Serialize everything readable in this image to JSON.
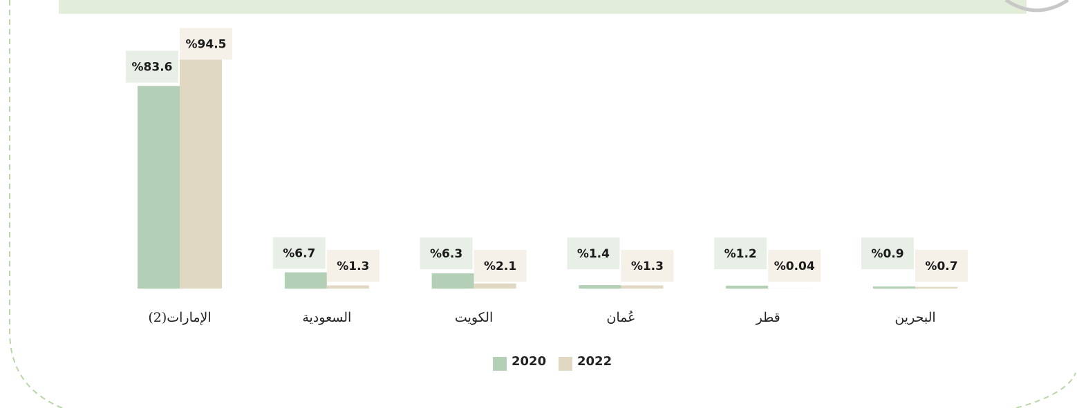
{
  "chart_data": {
    "type": "bar",
    "categories": [
      "الإمارات(2)",
      "السعودية",
      "الكويت",
      "عُمان",
      "قطر",
      "البحرين"
    ],
    "series": [
      {
        "name": "2020",
        "color": "#b3cfb5",
        "values": [
          83.6,
          6.7,
          6.3,
          1.4,
          1.2,
          0.9
        ],
        "value_labels": [
          "%83.6",
          "%6.7",
          "%6.3",
          "%1.4",
          "%1.2",
          "%0.9"
        ]
      },
      {
        "name": "2022",
        "color": "#e0d8c3",
        "values": [
          94.5,
          1.3,
          2.1,
          1.3,
          0.04,
          0.7
        ],
        "value_labels": [
          "%94.5",
          "%1.3",
          "%2.1",
          "%1.3",
          "%0.04",
          "%0.7"
        ]
      }
    ],
    "ylim": [
      0,
      100
    ]
  }
}
